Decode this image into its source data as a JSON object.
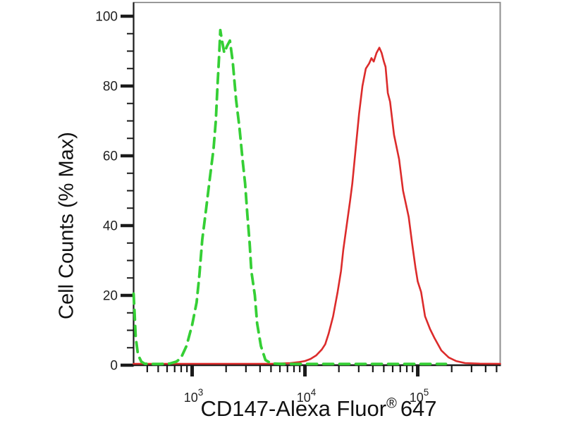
{
  "chart_data": {
    "type": "line",
    "title": "",
    "ylabel": "Cell Counts (% Max)",
    "xlabel_main": "CD147-Alexa Fluor",
    "xlabel_registered": "®",
    "xlabel_suffix": "647",
    "x_scale": "log10",
    "x_range_log10": [
      2.481,
      5.731
    ],
    "ylim": [
      0,
      100
    ],
    "grid": false,
    "legend": "none",
    "y_major_ticks": [
      0,
      20,
      40,
      60,
      80,
      100
    ],
    "y_minor_tick_step": 5,
    "x_major_ticks": [
      {
        "log10": 3,
        "base": "10",
        "exp": "3"
      },
      {
        "log10": 4,
        "base": "10",
        "exp": "4"
      },
      {
        "log10": 5,
        "base": "10",
        "exp": "5"
      }
    ],
    "x_minor_ticks_log10": [
      2.602,
      2.699,
      2.778,
      2.845,
      2.903,
      2.954,
      3.301,
      3.477,
      3.602,
      3.699,
      3.778,
      3.845,
      3.903,
      3.954,
      4.301,
      4.477,
      4.602,
      4.699,
      4.778,
      4.845,
      4.903,
      4.954,
      5.301,
      5.477,
      5.602,
      5.699
    ],
    "axis_colors": {
      "axis": "#1a1a1a",
      "box_top": "#777777",
      "box_right": "#8f8f8f",
      "tick_label": "#222222"
    },
    "series": [
      {
        "id": "red-solid-stained",
        "color": "#dc2b2b",
        "line_style": "solid",
        "stroke_width": 2.6,
        "dash": null,
        "points_log10x_percent": [
          [
            2.481,
            0.4
          ],
          [
            2.8,
            0.4
          ],
          [
            3.1,
            0.4
          ],
          [
            3.4,
            0.4
          ],
          [
            3.7,
            0.4
          ],
          [
            3.87,
            0.6
          ],
          [
            3.95,
            0.9
          ],
          [
            4.0,
            1.2
          ],
          [
            4.05,
            1.8
          ],
          [
            4.1,
            2.8
          ],
          [
            4.15,
            4.5
          ],
          [
            4.18,
            6
          ],
          [
            4.21,
            9
          ],
          [
            4.25,
            14
          ],
          [
            4.29,
            21
          ],
          [
            4.32,
            27
          ],
          [
            4.34,
            33
          ],
          [
            4.37,
            40
          ],
          [
            4.4,
            47
          ],
          [
            4.42,
            52
          ],
          [
            4.45,
            62
          ],
          [
            4.48,
            72
          ],
          [
            4.51,
            80
          ],
          [
            4.54,
            85
          ],
          [
            4.57,
            86.5
          ],
          [
            4.59,
            88
          ],
          [
            4.61,
            87
          ],
          [
            4.635,
            89.5
          ],
          [
            4.66,
            91
          ],
          [
            4.68,
            89.5
          ],
          [
            4.7,
            87
          ],
          [
            4.715,
            85.5
          ],
          [
            4.735,
            78
          ],
          [
            4.755,
            75.5
          ],
          [
            4.79,
            66
          ],
          [
            4.835,
            59
          ],
          [
            4.87,
            50
          ],
          [
            4.92,
            42.5
          ],
          [
            4.95,
            35
          ],
          [
            4.98,
            28
          ],
          [
            5.0,
            24
          ],
          [
            5.03,
            21
          ],
          [
            5.065,
            14
          ],
          [
            5.11,
            10.3
          ],
          [
            5.15,
            7.7
          ],
          [
            5.21,
            4.2
          ],
          [
            5.275,
            2.2
          ],
          [
            5.34,
            1.2
          ],
          [
            5.42,
            0.6
          ],
          [
            5.55,
            0.45
          ],
          [
            5.731,
            0.4
          ]
        ]
      },
      {
        "id": "green-dashed-control",
        "color": "#35cf35",
        "line_style": "dashed",
        "stroke_width": 3.8,
        "dash": [
          14,
          9
        ],
        "points_log10x_percent": [
          [
            2.481,
            20.5
          ],
          [
            2.49,
            15
          ],
          [
            2.5,
            8
          ],
          [
            2.52,
            3
          ],
          [
            2.55,
            1
          ],
          [
            2.58,
            0.4
          ],
          [
            2.65,
            0.35
          ],
          [
            2.72,
            0.35
          ],
          [
            2.8,
            0.45
          ],
          [
            2.86,
            1
          ],
          [
            2.9,
            2
          ],
          [
            2.95,
            5.5
          ],
          [
            3.0,
            11.5
          ],
          [
            3.04,
            18
          ],
          [
            3.065,
            26
          ],
          [
            3.09,
            36
          ],
          [
            3.125,
            45
          ],
          [
            3.155,
            53
          ],
          [
            3.19,
            62
          ],
          [
            3.21,
            70
          ],
          [
            3.225,
            80
          ],
          [
            3.24,
            89
          ],
          [
            3.25,
            96
          ],
          [
            3.265,
            93
          ],
          [
            3.285,
            89.5
          ],
          [
            3.31,
            91.5
          ],
          [
            3.335,
            93
          ],
          [
            3.36,
            87
          ],
          [
            3.39,
            76
          ],
          [
            3.42,
            68
          ],
          [
            3.45,
            58
          ],
          [
            3.47,
            52
          ],
          [
            3.49,
            43
          ],
          [
            3.51,
            35
          ],
          [
            3.525,
            27
          ],
          [
            3.556,
            20
          ],
          [
            3.576,
            12
          ],
          [
            3.61,
            5.5
          ],
          [
            3.65,
            1.5
          ],
          [
            3.7,
            0.5
          ],
          [
            3.8,
            0.35
          ],
          [
            3.95,
            0.35
          ],
          [
            4.1,
            0.35
          ],
          [
            4.25,
            0.35
          ],
          [
            4.4,
            0.35
          ],
          [
            4.55,
            0.35
          ],
          [
            4.7,
            0.35
          ],
          [
            4.85,
            0.35
          ],
          [
            5.0,
            0.35
          ],
          [
            5.12,
            0.35
          ],
          [
            5.25,
            0.35
          ]
        ]
      }
    ]
  }
}
